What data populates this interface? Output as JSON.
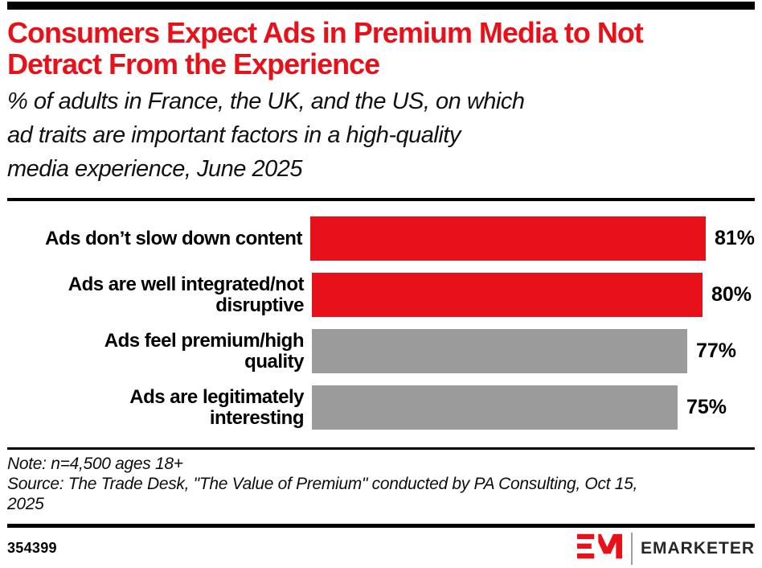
{
  "page": {
    "title_lines": [
      "Consumers Expect Ads in Premium Media to Not",
      "Detract From the Experience"
    ],
    "subtitle_lines": [
      "% of adults in France, the UK, and the US, on which",
      "ad traits are important factors in a high-quality",
      "media experience, June 2025"
    ]
  },
  "chart_data": {
    "type": "bar",
    "orientation": "horizontal",
    "title": "Consumers Expect Ads in Premium Media to Not Detract From the Experience",
    "subtitle": "% of adults in France, the UK, and the US, on which ad traits are important factors in a high-quality media experience, June 2025",
    "categories": [
      "Ads don’t slow down content",
      "Ads are well integrated/not disruptive",
      "Ads feel premium/high quality",
      "Ads are legitimately interesting"
    ],
    "values": [
      81,
      80,
      77,
      75
    ],
    "value_labels": [
      "81%",
      "80%",
      "77%",
      "75%"
    ],
    "label_lines": [
      [
        "Ads don’t slow down content"
      ],
      [
        "Ads are well integrated/not",
        "disruptive"
      ],
      [
        "Ads feel premium/high",
        "quality"
      ],
      [
        "Ads are legitimately",
        "interesting"
      ]
    ],
    "bar_colors": [
      "#e8111a",
      "#e8111a",
      "#9b9b9b",
      "#9b9b9b"
    ],
    "xlim": [
      0,
      100
    ],
    "grid": false,
    "legend": "none"
  },
  "footnotes": {
    "note": "Note: n=4,500 ages 18+",
    "source_lines": [
      "Source: The Trade Desk, \"The Value of Premium\" conducted by PA Consulting, Oct 15,",
      "2025"
    ]
  },
  "footer": {
    "chart_id": "354399",
    "brand_name": "EMARKETER"
  },
  "colors": {
    "accent_red": "#e8111a",
    "bar_gray": "#9b9b9b",
    "rule_black": "#000000",
    "wordmark_dark": "#262626"
  }
}
